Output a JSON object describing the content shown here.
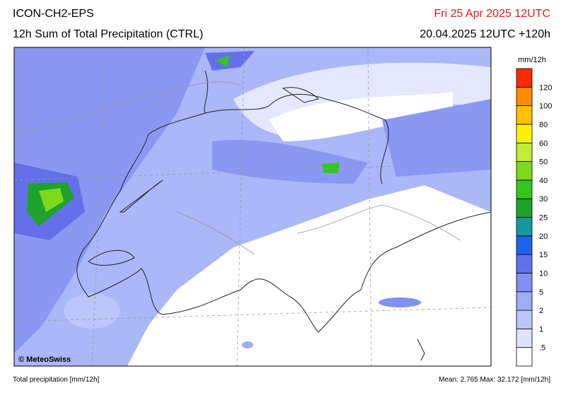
{
  "header": {
    "model": "ICON-CH2-EPS",
    "product": "12h Sum of Total Precipitation (CTRL)",
    "valid": "Fri 25 Apr 2025 12UTC",
    "run": "20.04.2025 12UTC +120h"
  },
  "legend": {
    "unit": "mm/12h",
    "labels": [
      ".5",
      "1",
      "2",
      "5",
      "10",
      "15",
      "20",
      "25",
      "30",
      "40",
      "50",
      "60",
      "80",
      "100",
      "120"
    ],
    "colors": [
      "#ffffff",
      "#dfe4fd",
      "#bcc6fb",
      "#9eacf6",
      "#8191f2",
      "#6470ea",
      "#1c63ef",
      "#13999b",
      "#1fa32a",
      "#34c61d",
      "#7cd91c",
      "#bfeb3a",
      "#fff200",
      "#ffc000",
      "#ff8c00",
      "#ff2a00"
    ]
  },
  "map": {
    "credit": "© MeteoSwiss"
  },
  "footer": {
    "left": "Total precipitation [mm/12h]",
    "stats": "Mean:  2.765 Max:  32.172 [mm/12h]"
  }
}
